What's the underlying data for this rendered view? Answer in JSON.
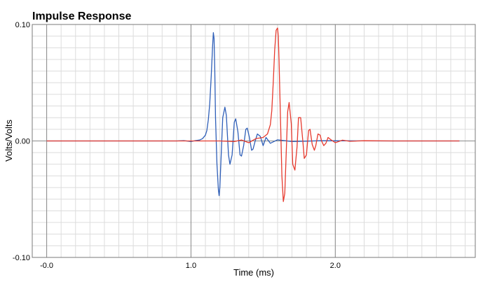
{
  "chart_data": {
    "type": "line",
    "title": "Impulse Response",
    "xlabel": "Time (ms)",
    "ylabel": "Volts/Volts",
    "xlim": [
      -0.1,
      2.97
    ],
    "ylim": [
      -0.1,
      0.1
    ],
    "x_ticks": [
      {
        "value": 0.0,
        "label": "-0.0"
      },
      {
        "value": 1.0,
        "label": "1.0"
      },
      {
        "value": 2.0,
        "label": "2.0"
      }
    ],
    "y_ticks": [
      {
        "value": 0.1,
        "label": "0.10"
      },
      {
        "value": 0.0,
        "label": "0.00"
      },
      {
        "value": -0.1,
        "label": "-0.10"
      }
    ],
    "grid": true,
    "legend": "none",
    "series": [
      {
        "color": "#2f5fb8",
        "x": [
          0.0,
          0.9,
          0.95,
          1.0,
          1.03,
          1.06,
          1.08,
          1.1,
          1.11,
          1.12,
          1.13,
          1.14,
          1.15,
          1.155,
          1.16,
          1.165,
          1.17,
          1.18,
          1.19,
          1.195,
          1.2,
          1.21,
          1.22,
          1.235,
          1.245,
          1.26,
          1.27,
          1.285,
          1.3,
          1.31,
          1.325,
          1.34,
          1.35,
          1.365,
          1.38,
          1.39,
          1.405,
          1.42,
          1.43,
          1.445,
          1.46,
          1.48,
          1.5,
          1.52,
          1.55,
          1.6,
          1.7,
          1.9,
          2.1,
          2.3,
          2.86
        ],
        "y": [
          0.0,
          0.0,
          0.0003,
          -0.0005,
          0.0003,
          0.0008,
          0.002,
          0.005,
          0.009,
          0.018,
          0.032,
          0.055,
          0.082,
          0.093,
          0.088,
          0.06,
          0.02,
          -0.02,
          -0.042,
          -0.047,
          -0.04,
          -0.01,
          0.02,
          0.029,
          0.022,
          -0.012,
          -0.02,
          -0.012,
          0.016,
          0.019,
          0.008,
          -0.012,
          -0.013,
          -0.004,
          0.01,
          0.011,
          0.003,
          -0.008,
          -0.007,
          0.0,
          0.006,
          0.004,
          -0.004,
          0.003,
          -0.002,
          0.001,
          -0.0005,
          0.0002,
          0.0001,
          0.0,
          0.0
        ]
      },
      {
        "color": "#e63a2e",
        "x": [
          0.0,
          1.2,
          1.3,
          1.35,
          1.4,
          1.45,
          1.5,
          1.53,
          1.55,
          1.56,
          1.57,
          1.58,
          1.59,
          1.6,
          1.605,
          1.61,
          1.62,
          1.63,
          1.64,
          1.65,
          1.66,
          1.67,
          1.68,
          1.695,
          1.705,
          1.72,
          1.735,
          1.745,
          1.76,
          1.775,
          1.785,
          1.8,
          1.815,
          1.825,
          1.84,
          1.855,
          1.865,
          1.88,
          1.895,
          1.905,
          1.92,
          1.935,
          1.95,
          1.97,
          2.0,
          2.05,
          2.1,
          2.2,
          2.4,
          2.6,
          2.86
        ],
        "y": [
          0.0,
          0.0,
          -0.0005,
          0.0008,
          -0.0015,
          0.002,
          0.003,
          0.006,
          0.014,
          0.026,
          0.05,
          0.078,
          0.095,
          0.097,
          0.09,
          0.07,
          0.02,
          -0.03,
          -0.052,
          -0.045,
          -0.01,
          0.025,
          0.033,
          0.015,
          -0.02,
          -0.025,
          -0.005,
          0.02,
          0.02,
          0.0,
          -0.015,
          -0.012,
          0.009,
          0.01,
          -0.003,
          -0.008,
          -0.004,
          0.006,
          0.005,
          0.0,
          -0.004,
          -0.002,
          0.003,
          0.001,
          -0.0015,
          0.0007,
          -0.0003,
          0.0002,
          0.0,
          0.0,
          0.0
        ]
      }
    ]
  }
}
